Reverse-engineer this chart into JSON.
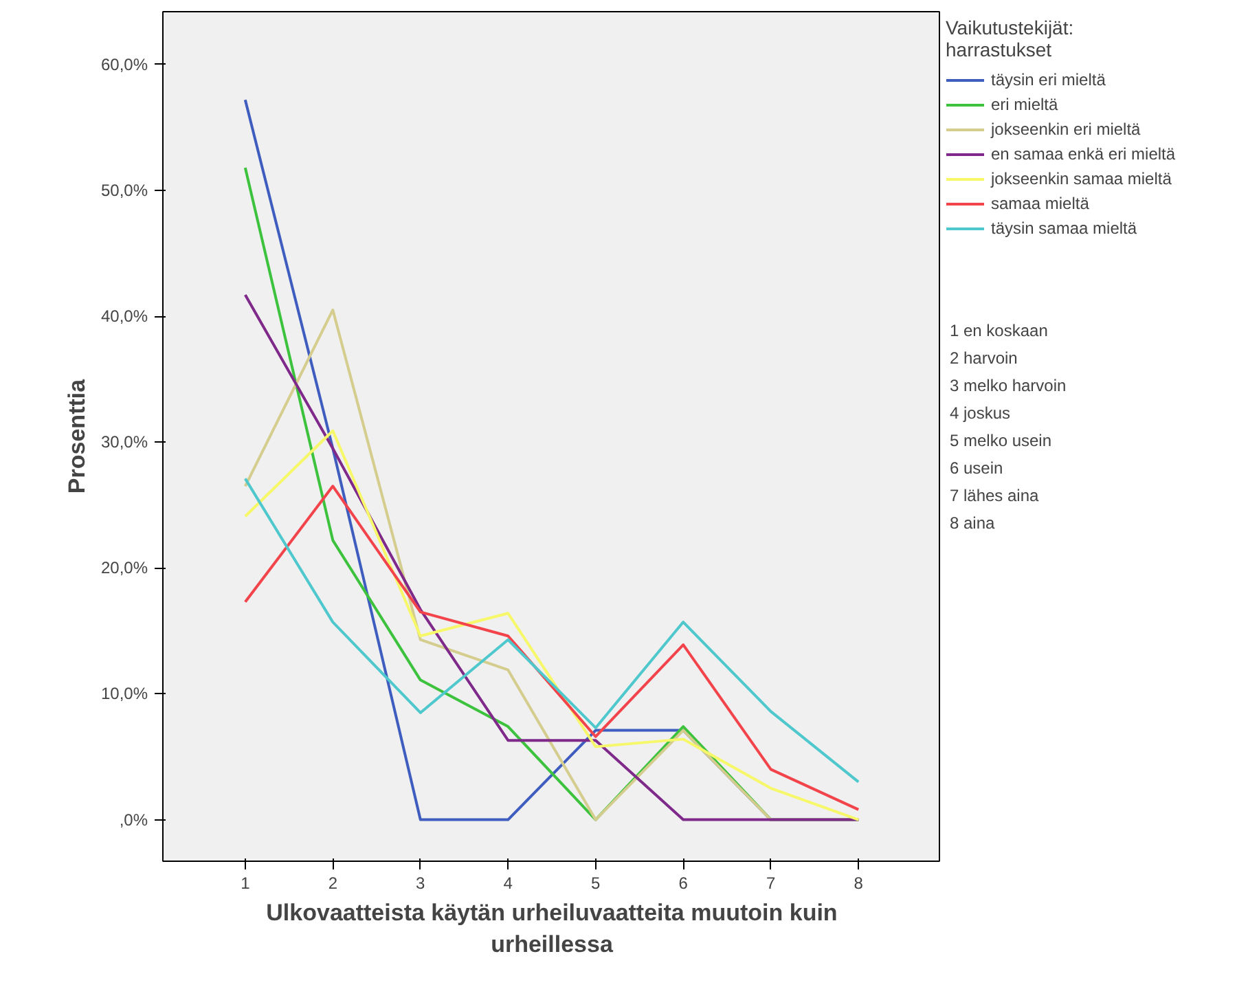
{
  "chart_data": {
    "type": "line",
    "xlabel": "Ulkovaatteista käytän urheiluvaatteita muutoin kuin urheillessa",
    "ylabel": "Prosenttia",
    "legend_title": "Vaikutustekijät: harrastukset",
    "legend": "right",
    "grid": false,
    "marker": "none",
    "line_style": "solid",
    "x": [
      1,
      2,
      3,
      4,
      5,
      6,
      7,
      8
    ],
    "xlim": [
      0.06,
      8.94
    ],
    "xticks": [
      1,
      2,
      3,
      4,
      5,
      6,
      7,
      8
    ],
    "ylim": [
      -3.3,
      64.2
    ],
    "yticks": [
      {
        "value": 0,
        "label": ",0%"
      },
      {
        "value": 10,
        "label": "10,0%"
      },
      {
        "value": 20,
        "label": "20,0%"
      },
      {
        "value": 30,
        "label": "30,0%"
      },
      {
        "value": 40,
        "label": "40,0%"
      },
      {
        "value": 50,
        "label": "50,0%"
      },
      {
        "value": 60,
        "label": "60,0%"
      }
    ],
    "series": [
      {
        "name": "täysin eri mieltä",
        "color": "#3f5dbf",
        "values": [
          57.2,
          29.5,
          0,
          0,
          7.1,
          7.1,
          0,
          0
        ]
      },
      {
        "name": "eri mieltä",
        "color": "#3dc23d",
        "values": [
          51.8,
          22.2,
          11.1,
          7.4,
          0,
          7.4,
          0,
          0
        ]
      },
      {
        "name": "jokseenkin eri mieltä",
        "color": "#d4cd8e",
        "values": [
          26.5,
          40.5,
          14.3,
          11.9,
          0,
          7.1,
          0,
          0
        ]
      },
      {
        "name": "en samaa enkä eri mieltä",
        "color": "#7f2a8a",
        "values": [
          41.7,
          29.5,
          16.7,
          6.3,
          6.3,
          0,
          0,
          0
        ]
      },
      {
        "name": "jokseenkin samaa mieltä",
        "color": "#f7f76a",
        "values": [
          24.1,
          30.9,
          14.6,
          16.4,
          5.8,
          6.4,
          2.5,
          0
        ]
      },
      {
        "name": "samaa mieltä",
        "color": "#f2444a",
        "values": [
          17.3,
          26.5,
          16.5,
          14.6,
          6.6,
          13.9,
          4.0,
          0.8
        ]
      },
      {
        "name": "täysin samaa mieltä",
        "color": "#4ec8cc",
        "values": [
          27.1,
          15.7,
          8.5,
          14.3,
          7.3,
          15.7,
          8.6,
          3.0
        ]
      }
    ],
    "annotations": [
      "1 en koskaan",
      "2 harvoin",
      "3 melko harvoin",
      "4 joskus",
      "5 melko usein",
      "6 usein",
      "7 lähes aina",
      "8 aina"
    ]
  }
}
